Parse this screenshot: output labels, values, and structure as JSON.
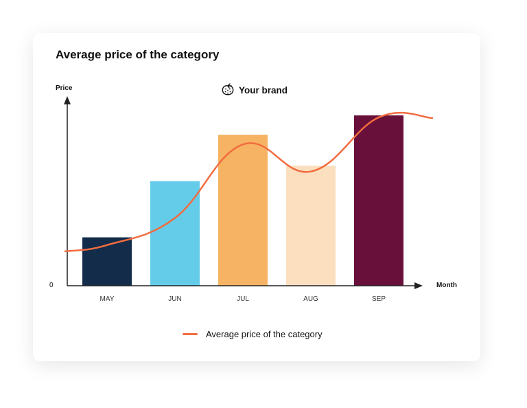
{
  "header": {
    "title": "Average price of the category"
  },
  "brand": {
    "name": "Your brand",
    "icon": "strawberry-icon"
  },
  "chart_data": {
    "type": "bar",
    "categories": [
      "MAY",
      "JUN",
      "JUL",
      "AUG",
      "SEP"
    ],
    "values": [
      25,
      54,
      78,
      62,
      88
    ],
    "bar_colors": [
      "#132c4a",
      "#64cce9",
      "#f6b363",
      "#fbdfbf",
      "#680f3a"
    ],
    "ylabel": "Price",
    "xlabel": "Month",
    "y_tick_label": "0",
    "grid": false,
    "legend_position": "bottom",
    "series": [
      {
        "name": "Average price of the category",
        "type": "line",
        "color": "#f26c3f",
        "values": [
          21,
          35,
          73,
          59,
          87
        ]
      }
    ]
  }
}
